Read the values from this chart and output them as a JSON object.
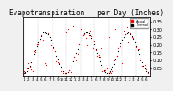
{
  "title": "Evapotranspiration   per Day (Inches)",
  "ylim": [
    0.0,
    0.38
  ],
  "background_color": "#f0f0f0",
  "plot_bg_color": "#ffffff",
  "grid_color": "#c0c0c0",
  "dot_color_red": "#ff0000",
  "dot_color_black": "#000000",
  "legend_label_red": "Actual",
  "legend_label_black": "Normal",
  "title_fontsize": 5.5,
  "tick_fontsize": 3.5,
  "num_points": 90
}
